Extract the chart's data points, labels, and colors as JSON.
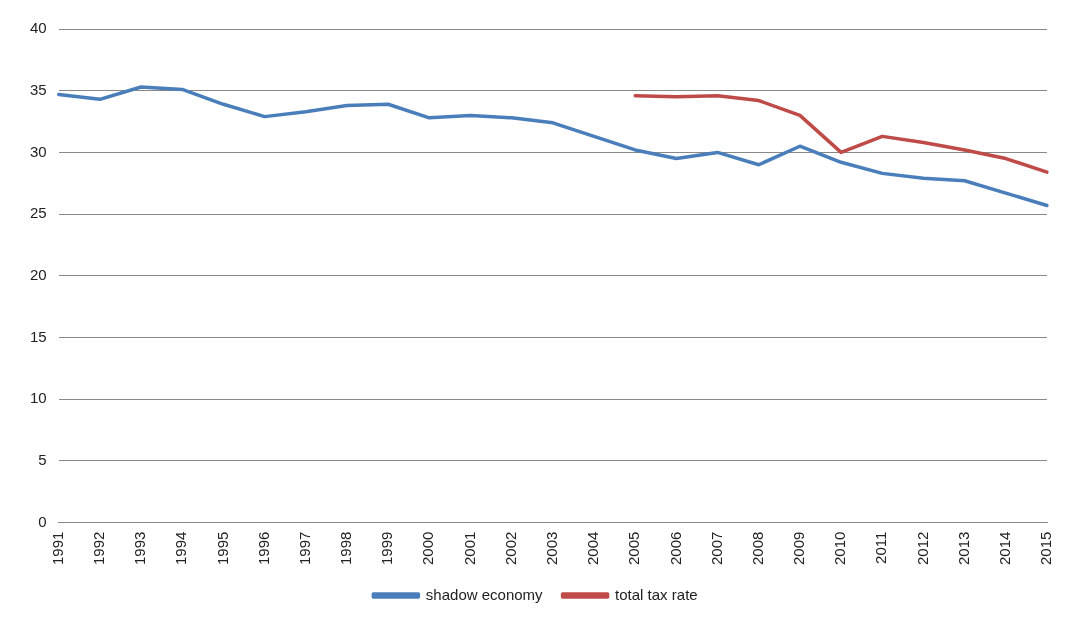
{
  "chart_data": {
    "type": "line",
    "categories": [
      "1991",
      "1992",
      "1993",
      "1994",
      "1995",
      "1996",
      "1997",
      "1998",
      "1999",
      "2000",
      "2001",
      "2002",
      "2003",
      "2004",
      "2005",
      "2006",
      "2007",
      "2008",
      "2009",
      "2010",
      "2011",
      "2012",
      "2013",
      "2014",
      "2015"
    ],
    "series": [
      {
        "name": "shadow economy",
        "color": "#4a7ebb",
        "values": [
          34.7,
          34.3,
          35.3,
          35.1,
          33.9,
          32.9,
          33.3,
          33.8,
          33.9,
          32.8,
          33.0,
          32.8,
          32.4,
          31.3,
          30.2,
          29.5,
          30.0,
          29.0,
          30.5,
          29.2,
          28.3,
          27.9,
          27.7,
          26.7,
          25.7
        ]
      },
      {
        "name": "total tax rate",
        "color": "#be4b48",
        "values": [
          null,
          null,
          null,
          null,
          null,
          null,
          null,
          null,
          null,
          null,
          null,
          null,
          null,
          null,
          34.6,
          34.5,
          34.6,
          34.2,
          33.0,
          30.0,
          31.3,
          30.8,
          30.2,
          29.5,
          28.4
        ]
      }
    ],
    "ylim": [
      0,
      40
    ],
    "yticks": [
      0,
      5,
      10,
      15,
      20,
      25,
      30,
      35,
      40
    ],
    "grid": "y",
    "legend": "bottom",
    "marker": "none",
    "line_style": "solid"
  }
}
